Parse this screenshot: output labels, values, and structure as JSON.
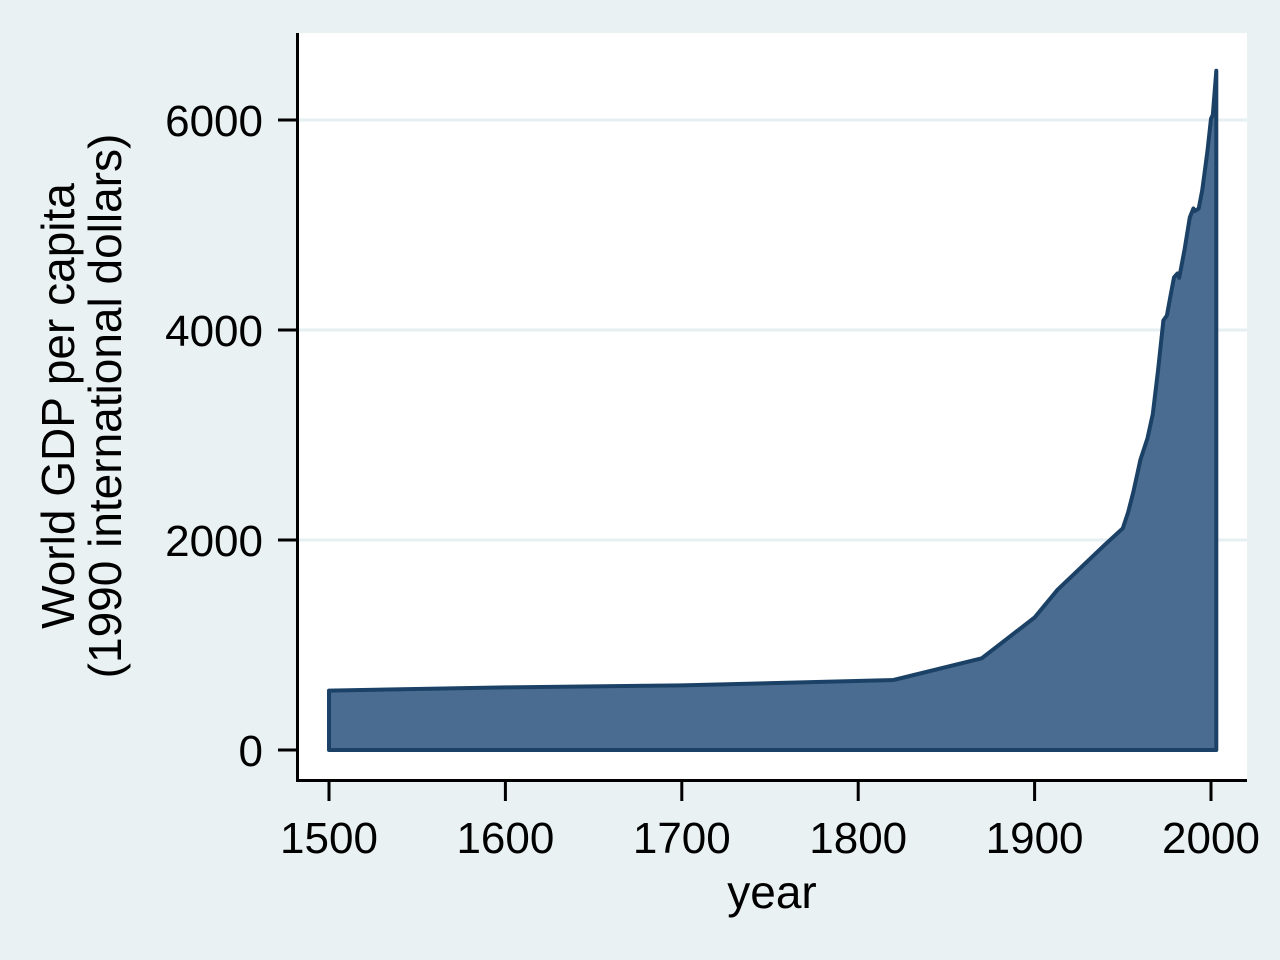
{
  "chart_data": {
    "type": "area",
    "title": "",
    "xlabel": "year",
    "ylabel": "World GDP per capita (1990 international dollars)",
    "ylabel_lines": [
      "World GDP per capita",
      "(1990 international dollars)"
    ],
    "series_name": "World GDP per capita (1990 international dollars)",
    "x": [
      1500,
      1600,
      1700,
      1820,
      1870,
      1900,
      1913,
      1940,
      1950,
      1953,
      1956,
      1960,
      1964,
      1967,
      1970,
      1973,
      1975,
      1977,
      1979,
      1980,
      1981,
      1982,
      1985,
      1988,
      1990,
      1991,
      1993,
      1995,
      1997,
      1998,
      2000,
      2001,
      2003
    ],
    "y": [
      566,
      596,
      615,
      667,
      873,
      1262,
      1526,
      1958,
      2111,
      2263,
      2459,
      2764,
      2970,
      3200,
      3620,
      4091,
      4138,
      4320,
      4501,
      4520,
      4538,
      4496,
      4763,
      5072,
      5157,
      5133,
      5156,
      5330,
      5577,
      5709,
      6012,
      6049,
      6469
    ],
    "xticks": [
      1500,
      1600,
      1700,
      1800,
      1900,
      2000
    ],
    "yticks": [
      0,
      2000,
      4000,
      6000
    ],
    "xlim": [
      1482,
      2020
    ],
    "ylim": [
      0,
      6830
    ],
    "grid": "horizontal",
    "legend": "none"
  },
  "colors": {
    "figure_bg": "#e9f1f2",
    "plot_bg": "#ffffff",
    "grid": "#e6eff1",
    "area_fill": "#4a6c90",
    "area_stroke": "#1b4266",
    "axis": "#000000",
    "text": "#000000"
  }
}
